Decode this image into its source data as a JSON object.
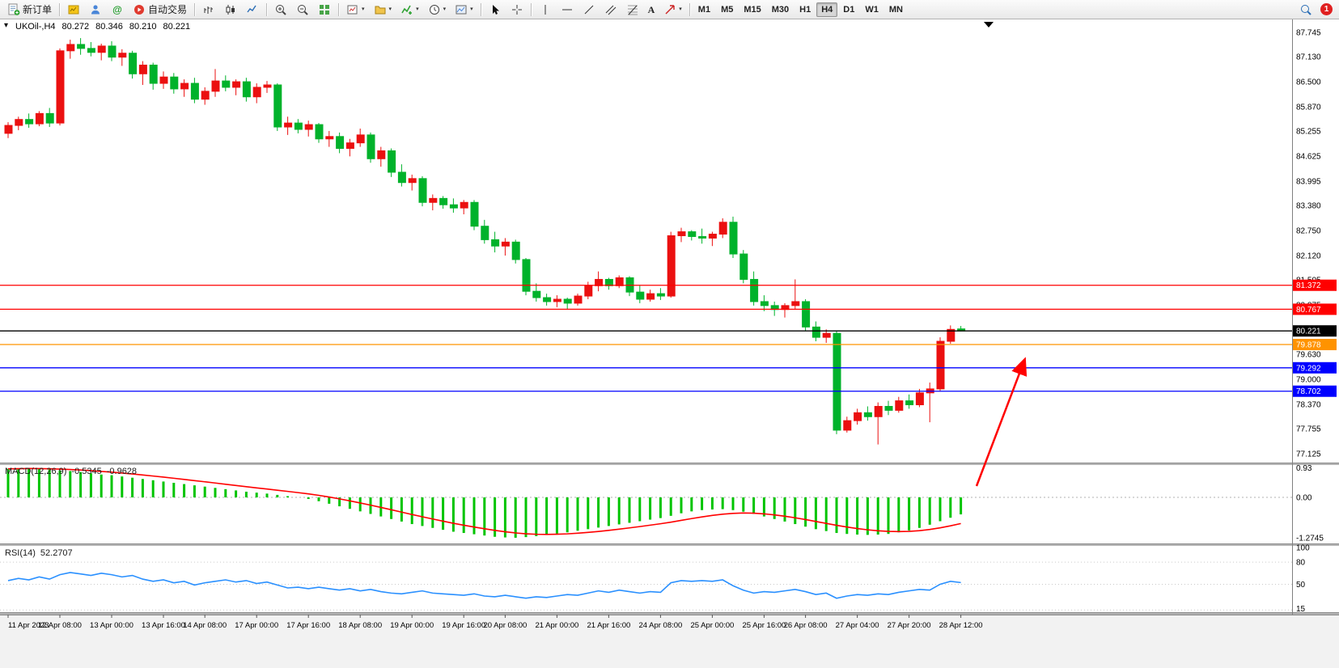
{
  "icons": {
    "caret": "▾",
    "one_click_collapsed": "▾",
    "text_tool": "A"
  },
  "toolbar": {
    "new_order": "新订单",
    "autotrading": "自动交易",
    "timeframes": [
      "M1",
      "M5",
      "M15",
      "M30",
      "H1",
      "H4",
      "D1",
      "W1",
      "MN"
    ],
    "active_timeframe": "H4",
    "notification_count": "1"
  },
  "chart_data": {
    "type": "candlestick",
    "symbol": "UKOil-",
    "timeframe": "H4",
    "symbol_title": "UKOil-,H4",
    "quote": {
      "open": "80.272",
      "high": "80.346",
      "low": "80.210",
      "close": "80.221"
    },
    "ylim": [
      77.125,
      87.745
    ],
    "price_axis_ticks": [
      "87.745",
      "87.130",
      "86.500",
      "85.870",
      "85.255",
      "84.625",
      "83.995",
      "83.380",
      "82.750",
      "82.120",
      "81.505",
      "80.875",
      "80.245",
      "79.630",
      "79.000",
      "78.370",
      "77.755",
      "77.125"
    ],
    "candles_ohlc": [
      [
        85.2,
        85.48,
        85.08,
        85.4
      ],
      [
        85.4,
        85.62,
        85.28,
        85.55
      ],
      [
        85.55,
        85.7,
        85.34,
        85.44
      ],
      [
        85.44,
        85.76,
        85.38,
        85.7
      ],
      [
        85.7,
        85.84,
        85.36,
        85.46
      ],
      [
        85.46,
        87.34,
        85.4,
        87.28
      ],
      [
        87.28,
        87.56,
        87.08,
        87.44
      ],
      [
        87.44,
        87.6,
        87.18,
        87.34
      ],
      [
        87.34,
        87.5,
        87.14,
        87.24
      ],
      [
        87.24,
        87.46,
        87.04,
        87.4
      ],
      [
        87.4,
        87.52,
        87.02,
        87.12
      ],
      [
        87.12,
        87.32,
        86.9,
        87.22
      ],
      [
        87.22,
        87.28,
        86.58,
        86.7
      ],
      [
        86.7,
        87.02,
        86.42,
        86.92
      ],
      [
        86.92,
        86.98,
        86.3,
        86.46
      ],
      [
        86.46,
        86.76,
        86.32,
        86.62
      ],
      [
        86.62,
        86.72,
        86.2,
        86.32
      ],
      [
        86.32,
        86.56,
        86.12,
        86.46
      ],
      [
        86.46,
        86.6,
        85.96,
        86.06
      ],
      [
        86.06,
        86.36,
        85.92,
        86.26
      ],
      [
        86.26,
        86.82,
        86.12,
        86.52
      ],
      [
        86.52,
        86.66,
        86.26,
        86.36
      ],
      [
        86.36,
        86.56,
        86.16,
        86.5
      ],
      [
        86.5,
        86.6,
        86.0,
        86.12
      ],
      [
        86.12,
        86.46,
        85.96,
        86.36
      ],
      [
        86.36,
        86.52,
        86.22,
        86.42
      ],
      [
        86.42,
        86.46,
        85.26,
        85.36
      ],
      [
        85.36,
        85.62,
        85.16,
        85.46
      ],
      [
        85.46,
        85.56,
        85.2,
        85.3
      ],
      [
        85.3,
        85.52,
        85.12,
        85.42
      ],
      [
        85.42,
        85.46,
        84.96,
        85.06
      ],
      [
        85.06,
        85.26,
        84.86,
        85.12
      ],
      [
        85.12,
        85.22,
        84.7,
        84.82
      ],
      [
        84.82,
        85.06,
        84.62,
        84.96
      ],
      [
        84.96,
        85.32,
        84.86,
        85.16
      ],
      [
        85.16,
        85.22,
        84.46,
        84.56
      ],
      [
        84.56,
        84.86,
        84.36,
        84.76
      ],
      [
        84.76,
        84.82,
        84.1,
        84.22
      ],
      [
        84.22,
        84.42,
        83.86,
        83.96
      ],
      [
        83.96,
        84.16,
        83.76,
        84.06
      ],
      [
        84.06,
        84.12,
        83.36,
        83.46
      ],
      [
        83.46,
        83.66,
        83.26,
        83.56
      ],
      [
        83.56,
        83.62,
        83.3,
        83.4
      ],
      [
        83.4,
        83.56,
        83.2,
        83.32
      ],
      [
        83.32,
        83.52,
        83.16,
        83.46
      ],
      [
        83.46,
        83.52,
        82.76,
        82.86
      ],
      [
        82.86,
        83.02,
        82.42,
        82.52
      ],
      [
        82.52,
        82.72,
        82.2,
        82.36
      ],
      [
        82.36,
        82.56,
        82.12,
        82.46
      ],
      [
        82.46,
        82.52,
        81.92,
        82.02
      ],
      [
        82.02,
        82.06,
        81.12,
        81.22
      ],
      [
        81.22,
        81.42,
        80.96,
        81.06
      ],
      [
        81.06,
        81.16,
        80.86,
        80.96
      ],
      [
        80.96,
        81.12,
        80.82,
        81.02
      ],
      [
        81.02,
        81.06,
        80.76,
        80.92
      ],
      [
        80.92,
        81.16,
        80.86,
        81.1
      ],
      [
        81.1,
        81.46,
        81.02,
        81.36
      ],
      [
        81.36,
        81.72,
        81.22,
        81.52
      ],
      [
        81.52,
        81.56,
        81.26,
        81.36
      ],
      [
        81.36,
        81.62,
        81.3,
        81.56
      ],
      [
        81.56,
        81.6,
        81.1,
        81.2
      ],
      [
        81.2,
        81.36,
        80.92,
        81.02
      ],
      [
        81.02,
        81.26,
        80.96,
        81.16
      ],
      [
        81.16,
        81.3,
        81.0,
        81.1
      ],
      [
        81.1,
        82.72,
        81.06,
        82.62
      ],
      [
        82.62,
        82.82,
        82.46,
        82.72
      ],
      [
        82.72,
        82.76,
        82.5,
        82.6
      ],
      [
        82.6,
        82.8,
        82.42,
        82.56
      ],
      [
        82.56,
        82.72,
        82.36,
        82.66
      ],
      [
        82.66,
        83.06,
        82.56,
        82.96
      ],
      [
        82.96,
        83.1,
        82.06,
        82.16
      ],
      [
        82.16,
        82.26,
        81.42,
        81.52
      ],
      [
        81.52,
        81.72,
        80.86,
        80.96
      ],
      [
        80.96,
        81.12,
        80.72,
        80.86
      ],
      [
        80.86,
        80.96,
        80.6,
        80.76
      ],
      [
        80.76,
        80.92,
        80.56,
        80.86
      ],
      [
        80.86,
        81.52,
        80.76,
        80.96
      ],
      [
        80.96,
        81.02,
        80.22,
        80.32
      ],
      [
        80.32,
        80.46,
        79.96,
        80.06
      ],
      [
        80.06,
        80.26,
        79.92,
        80.16
      ],
      [
        80.16,
        80.22,
        77.62,
        77.72
      ],
      [
        77.72,
        78.06,
        77.66,
        77.96
      ],
      [
        77.96,
        78.26,
        77.86,
        78.16
      ],
      [
        78.16,
        78.32,
        77.96,
        78.06
      ],
      [
        78.06,
        78.42,
        77.36,
        78.32
      ],
      [
        78.32,
        78.46,
        78.1,
        78.22
      ],
      [
        78.22,
        78.56,
        78.16,
        78.46
      ],
      [
        78.46,
        78.62,
        78.26,
        78.36
      ],
      [
        78.36,
        78.76,
        78.3,
        78.66
      ],
      [
        78.66,
        78.92,
        77.92,
        78.76
      ],
      [
        78.76,
        80.06,
        78.7,
        79.96
      ],
      [
        79.96,
        80.36,
        79.9,
        80.26
      ],
      [
        80.272,
        80.346,
        80.21,
        80.221
      ]
    ],
    "hlines": [
      {
        "price": 81.372,
        "label": "81.372",
        "color": "#ff0000"
      },
      {
        "price": 80.767,
        "label": "80.767",
        "color": "#ff0000"
      },
      {
        "price": 80.221,
        "label": "80.221",
        "color": "#000000"
      },
      {
        "price": 79.878,
        "label": "79.878",
        "color": "#ff9300"
      },
      {
        "price": 79.292,
        "label": "79.292",
        "color": "#0000ff"
      },
      {
        "price": 78.702,
        "label": "78.702",
        "color": "#0000ff"
      }
    ],
    "indicators": [
      {
        "type": "macd",
        "label": "MACD(12,26,9)",
        "value_main": "-0.5345",
        "value_signal": "-0.9628",
        "ylim": [
          -1.45,
          1.02
        ],
        "axis_ticks": [
          {
            "label": "0.93",
            "value": 0.93
          },
          {
            "label": "0.00",
            "value": 0
          },
          {
            "label": "-1.2745",
            "value": -1.2745
          }
        ],
        "signal_method": "ema9",
        "values": [
          0.9,
          0.92,
          0.93,
          0.9,
          0.88,
          0.85,
          0.83,
          0.8,
          0.76,
          0.72,
          0.7,
          0.66,
          0.62,
          0.58,
          0.54,
          0.5,
          0.46,
          0.42,
          0.38,
          0.34,
          0.3,
          0.26,
          0.22,
          0.18,
          0.15,
          0.12,
          0.08,
          0.04,
          0.0,
          -0.05,
          -0.12,
          -0.2,
          -0.28,
          -0.36,
          -0.44,
          -0.52,
          -0.6,
          -0.68,
          -0.76,
          -0.84,
          -0.9,
          -0.96,
          -1.02,
          -1.08,
          -1.12,
          -1.16,
          -1.2,
          -1.24,
          -1.26,
          -1.27,
          -1.25,
          -1.22,
          -1.18,
          -1.14,
          -1.1,
          -1.05,
          -1.0,
          -0.95,
          -0.9,
          -0.85,
          -0.8,
          -0.75,
          -0.7,
          -0.65,
          -0.58,
          -0.5,
          -0.44,
          -0.4,
          -0.38,
          -0.37,
          -0.4,
          -0.45,
          -0.52,
          -0.6,
          -0.68,
          -0.76,
          -0.84,
          -0.92,
          -1.0,
          -1.06,
          -1.12,
          -1.15,
          -1.17,
          -1.18,
          -1.17,
          -1.15,
          -1.1,
          -1.04,
          -0.96,
          -0.86,
          -0.75,
          -0.64,
          -0.5345
        ]
      },
      {
        "type": "rsi",
        "label": "RSI(14)",
        "value": "52.2707",
        "ylim": [
          12,
          100
        ],
        "axis_ticks": [
          {
            "label": "100",
            "value": 100
          },
          {
            "label": "80",
            "value": 80
          },
          {
            "label": "50",
            "value": 50
          },
          {
            "label": "15",
            "value": 15
          }
        ],
        "level_lines": [
          80,
          50,
          15
        ],
        "values": [
          55,
          58,
          56,
          60,
          57,
          63,
          66,
          64,
          62,
          65,
          63,
          60,
          62,
          57,
          54,
          56,
          52,
          54,
          49,
          52,
          54,
          56,
          53,
          55,
          51,
          53,
          49,
          45,
          46,
          44,
          46,
          44,
          42,
          44,
          41,
          43,
          40,
          38,
          37,
          39,
          41,
          38,
          37,
          36,
          35,
          37,
          34,
          33,
          35,
          33,
          31,
          33,
          32,
          34,
          36,
          35,
          38,
          41,
          39,
          42,
          40,
          38,
          40,
          39,
          52,
          55,
          54,
          55,
          54,
          56,
          48,
          42,
          38,
          40,
          39,
          41,
          43,
          40,
          36,
          38,
          31,
          34,
          36,
          35,
          37,
          36,
          39,
          41,
          43,
          42,
          50,
          54,
          52.27
        ]
      }
    ],
    "time_ticks": [
      {
        "label": "11 Apr 2023",
        "i": 0
      },
      {
        "label": "12 Apr 08:00",
        "i": 5
      },
      {
        "label": "13 Apr 00:00",
        "i": 10
      },
      {
        "label": "13 Apr 16:00",
        "i": 15
      },
      {
        "label": "14 Apr 08:00",
        "i": 19
      },
      {
        "label": "17 Apr 00:00",
        "i": 24
      },
      {
        "label": "17 Apr 16:00",
        "i": 29
      },
      {
        "label": "18 Apr 08:00",
        "i": 34
      },
      {
        "label": "19 Apr 00:00",
        "i": 39
      },
      {
        "label": "19 Apr 16:00",
        "i": 44
      },
      {
        "label": "20 Apr 08:00",
        "i": 48
      },
      {
        "label": "21 Apr 00:00",
        "i": 53
      },
      {
        "label": "21 Apr 16:00",
        "i": 58
      },
      {
        "label": "24 Apr 08:00",
        "i": 63
      },
      {
        "label": "25 Apr 00:00",
        "i": 68
      },
      {
        "label": "25 Apr 16:00",
        "i": 73
      },
      {
        "label": "26 Apr 08:00",
        "i": 77
      },
      {
        "label": "27 Apr 04:00",
        "i": 82
      },
      {
        "label": "27 Apr 20:00",
        "i": 87
      },
      {
        "label": "28 Apr 12:00",
        "i": 92
      }
    ],
    "annotations": [
      {
        "type": "arrow",
        "color": "#ff0000",
        "from": [
          1207,
          601
        ],
        "to": [
          1266,
          446
        ]
      }
    ],
    "colors": {
      "bull": "#eb1010",
      "bear": "#00b22b",
      "macd_hist": "#00c400",
      "signal": "#ff0000",
      "rsi": "#2a90ff"
    }
  }
}
